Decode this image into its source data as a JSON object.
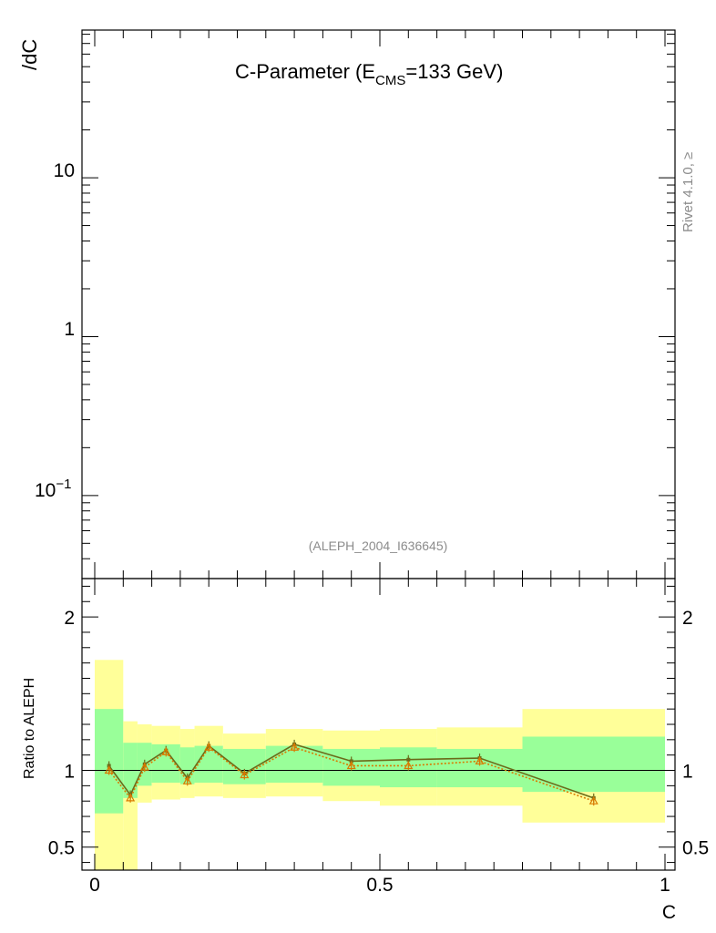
{
  "top_panel": {
    "title_main": "C-Parameter (E",
    "title_sub": "CMS",
    "title_rest": "=133 GeV)",
    "ylabel": "/dC",
    "yticks": [
      {
        "value": 10,
        "label": "10"
      },
      {
        "value": 1,
        "label": "1"
      },
      {
        "value": 0.1,
        "label_base": "10",
        "label_exp": "−1"
      }
    ],
    "ylim": [
      0.03,
      85
    ],
    "scale": "log",
    "watermark": "(ALEPH_2004_I636645)",
    "side_label": "Rivet 4.1.0, ≥"
  },
  "chart_data": {
    "type": "line",
    "xlabel": "C",
    "ylabel": "Ratio to ALEPH",
    "xlim": [
      -0.02,
      1.04
    ],
    "ylim": [
      0.35,
      2.25
    ],
    "x_ticks": [
      {
        "value": 0,
        "label": "0"
      },
      {
        "value": 0.5,
        "label": "0.5"
      },
      {
        "value": 1,
        "label": "1"
      }
    ],
    "y_ticks": [
      {
        "value": 0.5,
        "label": "0.5"
      },
      {
        "value": 1,
        "label": "1"
      },
      {
        "value": 2,
        "label": "2"
      }
    ],
    "reference_line": 1.0,
    "bands": [
      {
        "x0": 0.0,
        "x1": 0.05,
        "green": [
          0.72,
          1.4
        ],
        "yellow": [
          0.35,
          1.72
        ]
      },
      {
        "x0": 0.05,
        "x1": 0.075,
        "green": [
          0.82,
          1.18
        ],
        "yellow": [
          0.35,
          1.32
        ]
      },
      {
        "x0": 0.075,
        "x1": 0.1,
        "green": [
          0.9,
          1.18
        ],
        "yellow": [
          0.79,
          1.3
        ]
      },
      {
        "x0": 0.1,
        "x1": 0.15,
        "green": [
          0.92,
          1.17
        ],
        "yellow": [
          0.81,
          1.29
        ]
      },
      {
        "x0": 0.15,
        "x1": 0.175,
        "green": [
          0.91,
          1.15
        ],
        "yellow": [
          0.82,
          1.27
        ]
      },
      {
        "x0": 0.175,
        "x1": 0.225,
        "green": [
          0.92,
          1.16
        ],
        "yellow": [
          0.83,
          1.29
        ]
      },
      {
        "x0": 0.225,
        "x1": 0.3,
        "green": [
          0.91,
          1.14
        ],
        "yellow": [
          0.82,
          1.24
        ]
      },
      {
        "x0": 0.3,
        "x1": 0.4,
        "green": [
          0.92,
          1.16
        ],
        "yellow": [
          0.83,
          1.27
        ]
      },
      {
        "x0": 0.4,
        "x1": 0.5,
        "green": [
          0.9,
          1.14
        ],
        "yellow": [
          0.8,
          1.26
        ]
      },
      {
        "x0": 0.5,
        "x1": 0.6,
        "green": [
          0.89,
          1.15
        ],
        "yellow": [
          0.77,
          1.27
        ]
      },
      {
        "x0": 0.6,
        "x1": 0.75,
        "green": [
          0.89,
          1.14
        ],
        "yellow": [
          0.77,
          1.28
        ]
      },
      {
        "x0": 0.75,
        "x1": 1.0,
        "green": [
          0.86,
          1.22
        ],
        "yellow": [
          0.66,
          1.4
        ]
      }
    ],
    "series": [
      {
        "color": "#6b6b1a",
        "style": "solid",
        "x": [
          0.025,
          0.0625,
          0.0875,
          0.125,
          0.1625,
          0.2,
          0.2625,
          0.35,
          0.45,
          0.55,
          0.675,
          0.875
        ],
        "y": [
          1.03,
          0.84,
          1.04,
          1.13,
          0.95,
          1.16,
          0.98,
          1.17,
          1.06,
          1.07,
          1.08,
          0.82
        ]
      },
      {
        "color": "#d97a00",
        "style": "dotted",
        "x": [
          0.025,
          0.0625,
          0.0875,
          0.125,
          0.1625,
          0.2,
          0.2625,
          0.35,
          0.45,
          0.55,
          0.675,
          0.875
        ],
        "y": [
          1.0,
          0.82,
          1.02,
          1.12,
          0.93,
          1.15,
          0.97,
          1.15,
          1.03,
          1.03,
          1.06,
          0.8
        ]
      }
    ]
  }
}
